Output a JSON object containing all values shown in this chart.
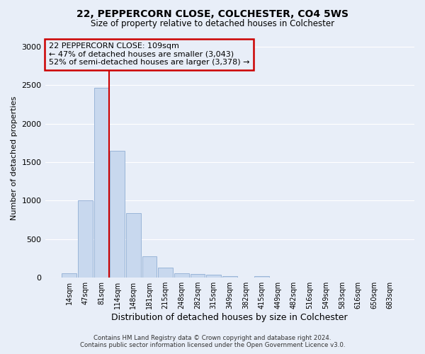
{
  "title": "22, PEPPERCORN CLOSE, COLCHESTER, CO4 5WS",
  "subtitle": "Size of property relative to detached houses in Colchester",
  "xlabel": "Distribution of detached houses by size in Colchester",
  "ylabel": "Number of detached properties",
  "bar_labels": [
    "14sqm",
    "47sqm",
    "81sqm",
    "114sqm",
    "148sqm",
    "181sqm",
    "215sqm",
    "248sqm",
    "282sqm",
    "315sqm",
    "349sqm",
    "382sqm",
    "415sqm",
    "449sqm",
    "482sqm",
    "516sqm",
    "549sqm",
    "583sqm",
    "616sqm",
    "650sqm",
    "683sqm"
  ],
  "bar_values": [
    55,
    1000,
    2470,
    1650,
    835,
    280,
    130,
    55,
    45,
    40,
    20,
    0,
    20,
    0,
    0,
    0,
    0,
    0,
    0,
    0,
    0
  ],
  "bar_color": "#c8d8ee",
  "bar_edgecolor": "#9ab5d8",
  "vline_color": "#cc0000",
  "annotation_line1": "22 PEPPERCORN CLOSE: 109sqm",
  "annotation_line2": "← 47% of detached houses are smaller (3,043)",
  "annotation_line3": "52% of semi-detached houses are larger (3,378) →",
  "annotation_box_edgecolor": "#cc0000",
  "ylim": [
    0,
    3100
  ],
  "yticks": [
    0,
    500,
    1000,
    1500,
    2000,
    2500,
    3000
  ],
  "footer_line1": "Contains HM Land Registry data © Crown copyright and database right 2024.",
  "footer_line2": "Contains public sector information licensed under the Open Government Licence v3.0.",
  "background_color": "#e8eef8",
  "grid_color": "#ffffff",
  "figsize": [
    6.0,
    5.0
  ],
  "dpi": 100
}
